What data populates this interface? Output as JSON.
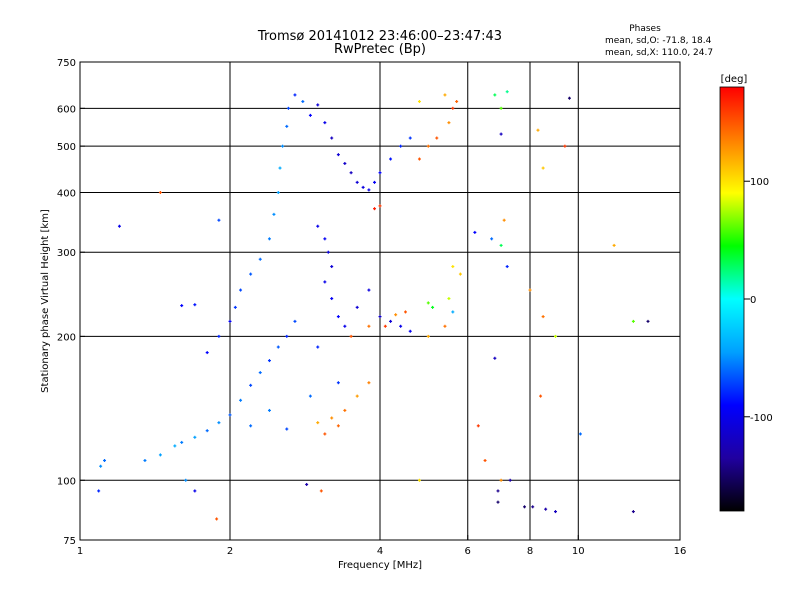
{
  "header": {
    "title_line1": "Tromsø 20141012 23:46:00–23:47:43",
    "title_line2": "RwPretec (Bp)",
    "phases_title": "Phases",
    "phases_o": "mean, sd,O: -71.8, 18.4",
    "phases_x": "mean, sd,X: 110.0, 24.7"
  },
  "chart_data": {
    "type": "scatter",
    "xlabel": "Frequency [MHz]",
    "ylabel": "Stationary phase Virtual Height [km]",
    "x_scale": "log",
    "y_scale": "log",
    "xlim": [
      1,
      16
    ],
    "ylim": [
      75,
      750
    ],
    "x_ticks": [
      1,
      2,
      4,
      6,
      8,
      10,
      16
    ],
    "x_tick_labels": [
      "1",
      "2",
      "4",
      "6",
      "8",
      "10",
      "16"
    ],
    "y_ticks": [
      75,
      100,
      200,
      300,
      400,
      500,
      600,
      750
    ],
    "y_tick_labels": [
      "75",
      "100",
      "200",
      "300",
      "400",
      "500",
      "600",
      "750"
    ],
    "grid": true,
    "colorbar": {
      "label": "[deg]",
      "range": [
        -180,
        180
      ],
      "ticks": [
        100,
        0,
        -100
      ],
      "tick_labels": [
        "100",
        "0",
        "-100"
      ],
      "colors": [
        "#000000",
        "#2000a0",
        "#0000ff",
        "#00a0ff",
        "#00ffff",
        "#00ff00",
        "#ffff00",
        "#ff8000",
        "#ff0000"
      ]
    },
    "series": [
      {
        "points": [
          [
            1.1,
            107,
            -50
          ],
          [
            1.12,
            110,
            -60
          ],
          [
            1.09,
            95,
            -80
          ],
          [
            1.35,
            110,
            -55
          ],
          [
            1.45,
            113,
            -45
          ],
          [
            1.55,
            118,
            -40
          ],
          [
            1.6,
            120,
            -55
          ],
          [
            1.7,
            123,
            -45
          ],
          [
            1.8,
            127,
            -60
          ],
          [
            1.9,
            132,
            -50
          ],
          [
            2.0,
            137,
            -65
          ],
          [
            2.1,
            147,
            -55
          ],
          [
            2.2,
            158,
            -70
          ],
          [
            2.3,
            168,
            -60
          ],
          [
            2.4,
            178,
            -75
          ],
          [
            2.5,
            190,
            -65
          ],
          [
            2.6,
            200,
            -80
          ],
          [
            2.7,
            215,
            -70
          ],
          [
            2.2,
            130,
            -60
          ],
          [
            2.4,
            140,
            -55
          ],
          [
            2.6,
            128,
            -70
          ],
          [
            1.8,
            185,
            -90
          ],
          [
            1.9,
            200,
            -80
          ],
          [
            2.0,
            215,
            -95
          ],
          [
            2.05,
            230,
            -75
          ],
          [
            1.7,
            233,
            -85
          ],
          [
            1.6,
            232,
            -90
          ],
          [
            2.1,
            250,
            -70
          ],
          [
            2.2,
            270,
            -65
          ],
          [
            2.3,
            290,
            -60
          ],
          [
            2.4,
            320,
            -55
          ],
          [
            2.45,
            360,
            -50
          ],
          [
            2.5,
            400,
            -45
          ],
          [
            2.52,
            450,
            -40
          ],
          [
            2.55,
            500,
            -50
          ],
          [
            2.6,
            550,
            -60
          ],
          [
            2.62,
            600,
            -70
          ],
          [
            2.7,
            640,
            -80
          ],
          [
            2.8,
            620,
            -60
          ],
          [
            2.9,
            580,
            -90
          ],
          [
            3.0,
            610,
            -110
          ],
          [
            3.1,
            560,
            -100
          ],
          [
            3.2,
            520,
            -120
          ],
          [
            3.3,
            480,
            -110
          ],
          [
            3.4,
            460,
            -115
          ],
          [
            3.5,
            440,
            -120
          ],
          [
            3.6,
            420,
            -110
          ],
          [
            3.7,
            410,
            -105
          ],
          [
            3.8,
            405,
            -100
          ],
          [
            3.9,
            420,
            -95
          ],
          [
            4.0,
            440,
            -90
          ],
          [
            4.2,
            470,
            -85
          ],
          [
            4.4,
            500,
            -80
          ],
          [
            4.6,
            520,
            -75
          ],
          [
            3.0,
            340,
            -100
          ],
          [
            3.1,
            320,
            -95
          ],
          [
            3.15,
            300,
            -105
          ],
          [
            3.2,
            280,
            -110
          ],
          [
            3.1,
            260,
            -100
          ],
          [
            3.2,
            240,
            -95
          ],
          [
            3.3,
            220,
            -90
          ],
          [
            3.4,
            210,
            -100
          ],
          [
            3.6,
            230,
            -110
          ],
          [
            3.8,
            250,
            -105
          ],
          [
            4.0,
            220,
            -115
          ],
          [
            4.2,
            215,
            -110
          ],
          [
            4.4,
            210,
            -100
          ],
          [
            4.6,
            205,
            -95
          ],
          [
            3.0,
            190,
            -80
          ],
          [
            3.3,
            160,
            -75
          ],
          [
            2.9,
            150,
            -60
          ],
          [
            3.0,
            132,
            120
          ],
          [
            3.2,
            135,
            130
          ],
          [
            3.4,
            140,
            140
          ],
          [
            3.6,
            150,
            125
          ],
          [
            3.8,
            160,
            135
          ],
          [
            3.1,
            125,
            150
          ],
          [
            3.3,
            130,
            145
          ],
          [
            3.5,
            200,
            150
          ],
          [
            3.8,
            210,
            140
          ],
          [
            4.1,
            210,
            160
          ],
          [
            4.3,
            222,
            130
          ],
          [
            4.5,
            225,
            150
          ],
          [
            3.9,
            370,
            170
          ],
          [
            4.0,
            375,
            160
          ],
          [
            4.8,
            470,
            150
          ],
          [
            5.0,
            500,
            140
          ],
          [
            5.2,
            520,
            150
          ],
          [
            5.5,
            560,
            130
          ],
          [
            5.6,
            600,
            160
          ],
          [
            5.7,
            620,
            145
          ],
          [
            5.4,
            640,
            120
          ],
          [
            4.8,
            620,
            100
          ],
          [
            5.0,
            235,
            60
          ],
          [
            5.1,
            230,
            40
          ],
          [
            5.5,
            240,
            80
          ],
          [
            5.6,
            225,
            -40
          ],
          [
            5.8,
            270,
            110
          ],
          [
            5.6,
            280,
            100
          ],
          [
            6.2,
            330,
            -90
          ],
          [
            6.7,
            320,
            -60
          ],
          [
            7.0,
            310,
            30
          ],
          [
            7.1,
            350,
            130
          ],
          [
            7.2,
            280,
            -80
          ],
          [
            6.8,
            640,
            30
          ],
          [
            7.0,
            600,
            60
          ],
          [
            7.2,
            650,
            20
          ],
          [
            7.0,
            530,
            -120
          ],
          [
            8.3,
            540,
            120
          ],
          [
            8.5,
            450,
            110
          ],
          [
            9.6,
            630,
            -150
          ],
          [
            9.4,
            500,
            160
          ],
          [
            6.8,
            180,
            -120
          ],
          [
            6.5,
            110,
            150
          ],
          [
            6.3,
            130,
            160
          ],
          [
            7.0,
            100,
            130
          ],
          [
            6.9,
            95,
            -140
          ],
          [
            7.3,
            100,
            -130
          ],
          [
            6.9,
            90,
            -150
          ],
          [
            7.8,
            88,
            -150
          ],
          [
            8.1,
            88,
            -140
          ],
          [
            8.6,
            87,
            -130
          ],
          [
            9.0,
            86,
            -120
          ],
          [
            10.1,
            125,
            -60
          ],
          [
            12.9,
            86,
            -140
          ],
          [
            13.8,
            215,
            -150
          ],
          [
            12.9,
            215,
            60
          ],
          [
            11.8,
            310,
            120
          ],
          [
            8.4,
            150,
            150
          ],
          [
            9.0,
            200,
            80
          ],
          [
            8.5,
            220,
            140
          ],
          [
            8.0,
            250,
            130
          ],
          [
            5.4,
            210,
            140
          ],
          [
            5.0,
            200,
            120
          ],
          [
            4.8,
            100,
            100
          ],
          [
            1.2,
            340,
            -100
          ],
          [
            1.45,
            400,
            150
          ],
          [
            1.9,
            350,
            -70
          ],
          [
            1.63,
            100,
            -50
          ],
          [
            1.7,
            95,
            -100
          ],
          [
            1.88,
            83,
            150
          ],
          [
            2.85,
            98,
            -130
          ],
          [
            3.05,
            95,
            150
          ]
        ]
      }
    ]
  }
}
